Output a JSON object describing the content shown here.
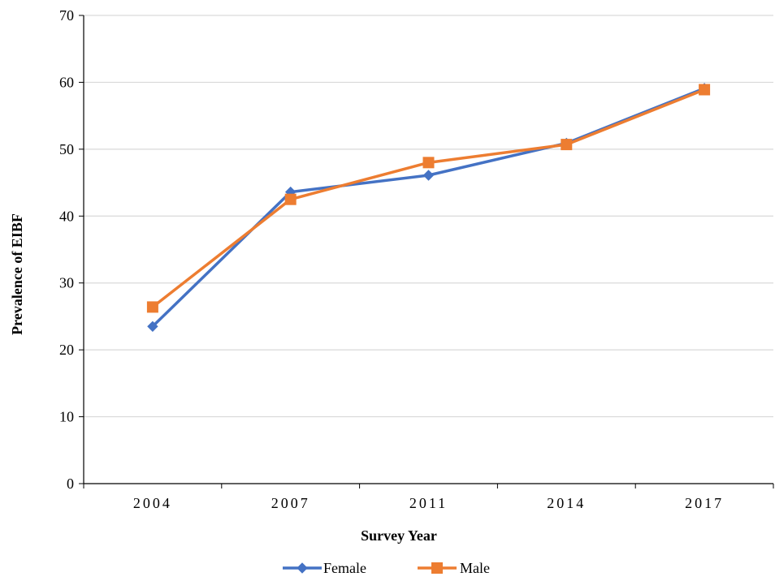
{
  "chart_data": {
    "type": "line",
    "title": "",
    "xlabel": "Survey Year",
    "ylabel": "Prevalence of EIBF",
    "categories": [
      "2004",
      "2007",
      "2011",
      "2014",
      "2017"
    ],
    "ylim": [
      0,
      70
    ],
    "yticks": [
      "0",
      "10",
      "20",
      "30",
      "40",
      "50",
      "60",
      "70"
    ],
    "grid": "horizontal",
    "legend_position": "bottom",
    "series": [
      {
        "name": "Female",
        "values": [
          23.5,
          43.6,
          46.1,
          50.9,
          59.1
        ],
        "color": "#4472c4",
        "marker": "diamond"
      },
      {
        "name": "Male",
        "values": [
          26.4,
          42.5,
          48.0,
          50.7,
          58.9
        ],
        "color": "#ed7d31",
        "marker": "square"
      }
    ]
  }
}
